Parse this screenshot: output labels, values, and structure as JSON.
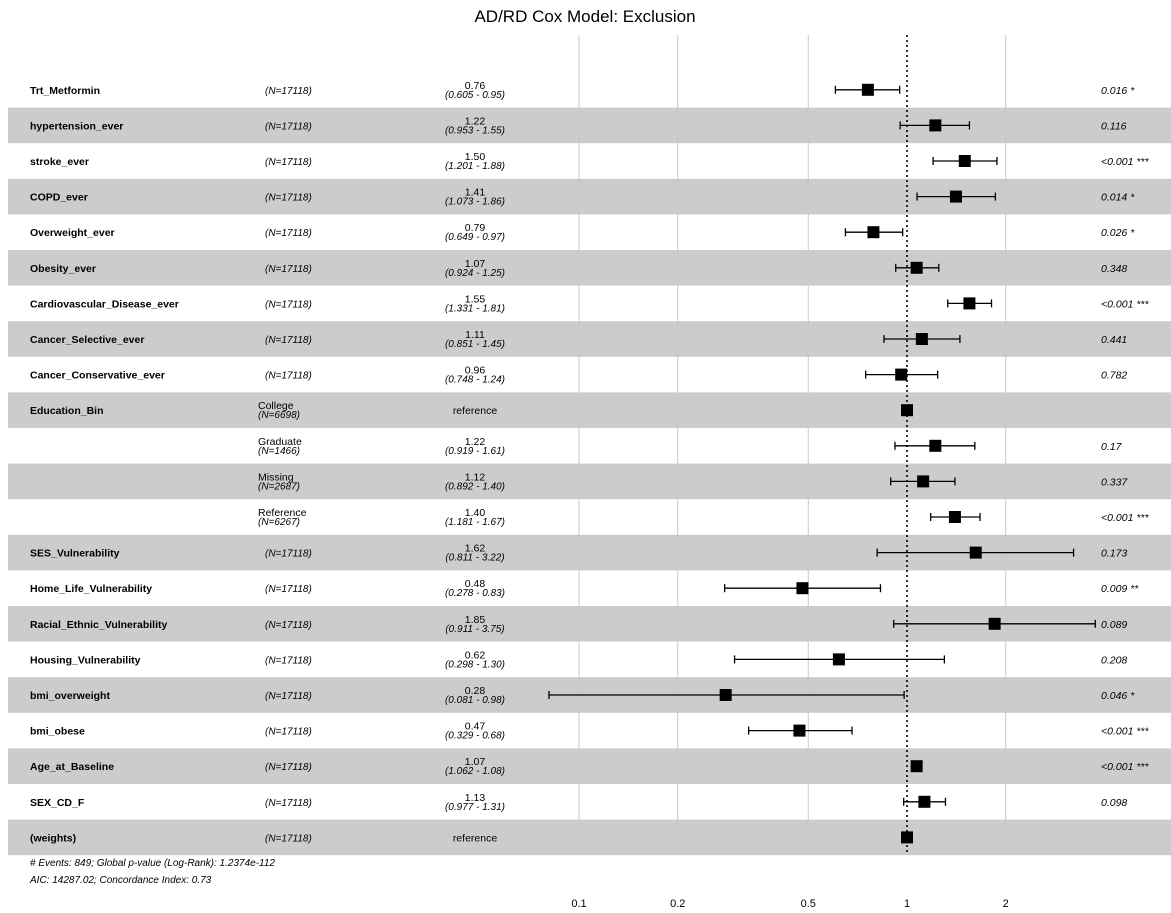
{
  "chart_data": {
    "type": "forest",
    "title": "AD/RD Cox Model: Exclusion",
    "x_scale": "log",
    "x_ticks": [
      0.1,
      0.2,
      0.5,
      1,
      2
    ],
    "x_tick_labels": [
      "0.1",
      "0.2",
      "0.5",
      "1",
      "2"
    ],
    "reference_line": 1,
    "footnote_lines": [
      "# Events: 849; Global p-value (Log-Rank): 1.2374e-112",
      "AIC: 14287.02; Concordance Index: 0.73"
    ],
    "rows": [
      {
        "var": "Trt_Metformin",
        "n": "(N=17118)",
        "est": 0.76,
        "est_label": "0.76",
        "ci_label": "(0.605 - 0.95)",
        "lo": 0.605,
        "hi": 0.95,
        "p": "0.016 *"
      },
      {
        "var": "hypertension_ever",
        "n": "(N=17118)",
        "est": 1.22,
        "est_label": "1.22",
        "ci_label": "(0.953 - 1.55)",
        "lo": 0.953,
        "hi": 1.55,
        "p": "0.116"
      },
      {
        "var": "stroke_ever",
        "n": "(N=17118)",
        "est": 1.5,
        "est_label": "1.50",
        "ci_label": "(1.201 - 1.88)",
        "lo": 1.201,
        "hi": 1.88,
        "p": "<0.001 ***"
      },
      {
        "var": "COPD_ever",
        "n": "(N=17118)",
        "est": 1.41,
        "est_label": "1.41",
        "ci_label": "(1.073 - 1.86)",
        "lo": 1.073,
        "hi": 1.86,
        "p": "0.014 *"
      },
      {
        "var": "Overweight_ever",
        "n": "(N=17118)",
        "est": 0.79,
        "est_label": "0.79",
        "ci_label": "(0.649 - 0.97)",
        "lo": 0.649,
        "hi": 0.97,
        "p": "0.026 *"
      },
      {
        "var": "Obesity_ever",
        "n": "(N=17118)",
        "est": 1.07,
        "est_label": "1.07",
        "ci_label": "(0.924 - 1.25)",
        "lo": 0.924,
        "hi": 1.25,
        "p": "0.348"
      },
      {
        "var": "Cardiovascular_Disease_ever",
        "n": "(N=17118)",
        "est": 1.55,
        "est_label": "1.55",
        "ci_label": "(1.331 - 1.81)",
        "lo": 1.331,
        "hi": 1.81,
        "p": "<0.001 ***"
      },
      {
        "var": "Cancer_Selective_ever",
        "n": "(N=17118)",
        "est": 1.11,
        "est_label": "1.11",
        "ci_label": "(0.851 - 1.45)",
        "lo": 0.851,
        "hi": 1.45,
        "p": "0.441"
      },
      {
        "var": "Cancer_Conservative_ever",
        "n": "(N=17118)",
        "est": 0.96,
        "est_label": "0.96",
        "ci_label": "(0.748 - 1.24)",
        "lo": 0.748,
        "hi": 1.24,
        "p": "0.782"
      },
      {
        "var": "Education_Bin",
        "level": "College",
        "n": "(N=6698)",
        "est": 1,
        "est_label": "reference",
        "ci_label": "",
        "lo": null,
        "hi": null,
        "p": ""
      },
      {
        "var": "",
        "level": "Graduate",
        "n": "(N=1466)",
        "est": 1.22,
        "est_label": "1.22",
        "ci_label": "(0.919 - 1.61)",
        "lo": 0.919,
        "hi": 1.61,
        "p": "0.17"
      },
      {
        "var": "",
        "level": "Missing",
        "n": "(N=2687)",
        "est": 1.12,
        "est_label": "1.12",
        "ci_label": "(0.892 - 1.40)",
        "lo": 0.892,
        "hi": 1.4,
        "p": "0.337"
      },
      {
        "var": "",
        "level": "Reference",
        "n": "(N=6267)",
        "est": 1.4,
        "est_label": "1.40",
        "ci_label": "(1.181 - 1.67)",
        "lo": 1.181,
        "hi": 1.67,
        "p": "<0.001 ***"
      },
      {
        "var": "SES_Vulnerability",
        "n": "(N=17118)",
        "est": 1.62,
        "est_label": "1.62",
        "ci_label": "(0.811 - 3.22)",
        "lo": 0.811,
        "hi": 3.22,
        "p": "0.173"
      },
      {
        "var": "Home_Life_Vulnerability",
        "n": "(N=17118)",
        "est": 0.48,
        "est_label": "0.48",
        "ci_label": "(0.278 - 0.83)",
        "lo": 0.278,
        "hi": 0.83,
        "p": "0.009 **"
      },
      {
        "var": "Racial_Ethnic_Vulnerability",
        "n": "(N=17118)",
        "est": 1.85,
        "est_label": "1.85",
        "ci_label": "(0.911 - 3.75)",
        "lo": 0.911,
        "hi": 3.75,
        "p": "0.089"
      },
      {
        "var": "Housing_Vulnerability",
        "n": "(N=17118)",
        "est": 0.62,
        "est_label": "0.62",
        "ci_label": "(0.298 - 1.30)",
        "lo": 0.298,
        "hi": 1.3,
        "p": "0.208"
      },
      {
        "var": "bmi_overweight",
        "n": "(N=17118)",
        "est": 0.28,
        "est_label": "0.28",
        "ci_label": "(0.081 - 0.98)",
        "lo": 0.081,
        "hi": 0.98,
        "p": "0.046 *"
      },
      {
        "var": "bmi_obese",
        "n": "(N=17118)",
        "est": 0.47,
        "est_label": "0.47",
        "ci_label": "(0.329 - 0.68)",
        "lo": 0.329,
        "hi": 0.68,
        "p": "<0.001 ***"
      },
      {
        "var": "Age_at_Baseline",
        "n": "(N=17118)",
        "est": 1.07,
        "est_label": "1.07",
        "ci_label": "(1.062 - 1.08)",
        "lo": 1.062,
        "hi": 1.08,
        "p": "<0.001 ***"
      },
      {
        "var": "SEX_CD_F",
        "n": "(N=17118)",
        "est": 1.13,
        "est_label": "1.13",
        "ci_label": "(0.977 - 1.31)",
        "lo": 0.977,
        "hi": 1.31,
        "p": "0.098"
      },
      {
        "var": "(weights)",
        "n": "(N=17118)",
        "est": 1,
        "est_label": "reference",
        "ci_label": "",
        "lo": null,
        "hi": null,
        "p": ""
      }
    ]
  },
  "colors": {
    "band": "#cccccc",
    "grid": "#c8c8c8",
    "marker": "#000000",
    "text": "#000000"
  }
}
